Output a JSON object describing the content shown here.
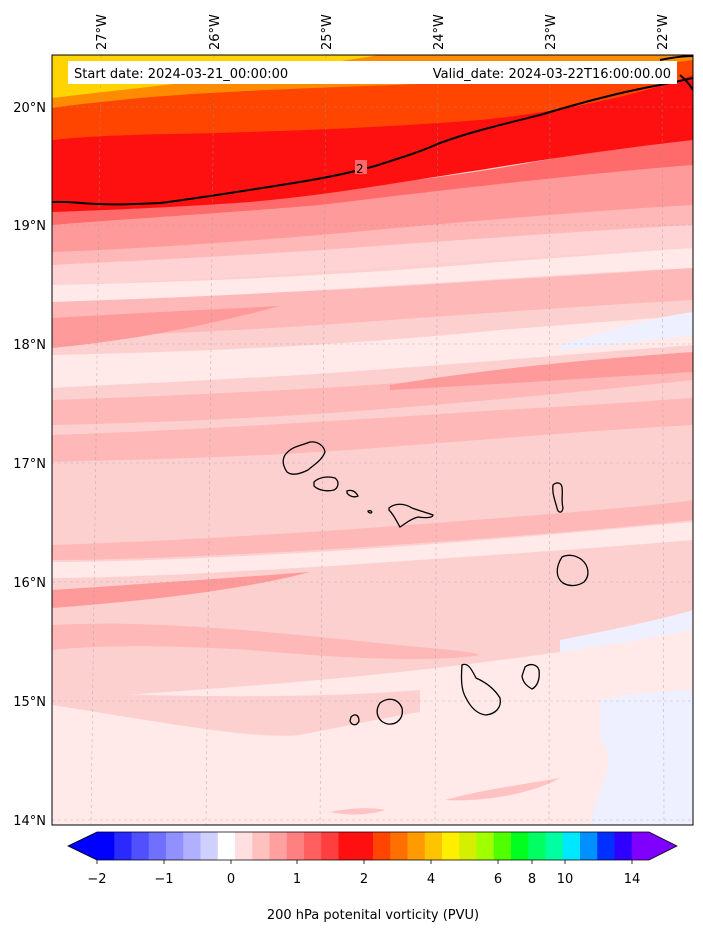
{
  "map": {
    "start_label": "Start date: 2024-03-21_00:00:00",
    "valid_label": "Valid_date: 2024-03-22T16:00:00.00",
    "contour_label": "2",
    "longitude_labels": [
      "27°W",
      "26°W",
      "25°W",
      "24°W",
      "23°W",
      "22°W"
    ],
    "latitude_labels": [
      "20°N",
      "19°N",
      "18°N",
      "17°N",
      "16°N",
      "15°N",
      "14°N"
    ],
    "background_color": "#fdd0d0",
    "band_colors": {
      "yellow": "#ffd400",
      "orange": "#ff8c00",
      "dark_orange": "#ff4500",
      "red": "#ff1010",
      "strong_pink": "#ff6a6a",
      "mid_pink": "#ff9a9a",
      "light_pink": "#ffb8b8",
      "pale_pink": "#ffd3d3",
      "near_white": "#ffe9e9",
      "pale_blue": "#eef0ff"
    }
  },
  "colorbar": {
    "title": "200 hPa potenital vorticity (PVU)",
    "tick_labels": [
      "−2",
      "−1",
      "0",
      "1",
      "2",
      "4",
      "6",
      "8",
      "10",
      "14"
    ],
    "colors": [
      "#0000ff",
      "#2a2aff",
      "#5050ff",
      "#7070ff",
      "#9090ff",
      "#b0b0ff",
      "#d0d0ff",
      "#ffffff",
      "#ffe0e0",
      "#ffc0c0",
      "#ffa0a0",
      "#ff8080",
      "#ff5f5f",
      "#ff3f3f",
      "#ff0f0f",
      "#ff1010",
      "#ff4500",
      "#ff7000",
      "#ff9a00",
      "#ffc400",
      "#ffee00",
      "#d4f000",
      "#a0ff00",
      "#50ff00",
      "#00ff20",
      "#00ff60",
      "#00ffa0",
      "#00e8ff",
      "#0090ff",
      "#0030ff",
      "#3000ff",
      "#8000ff"
    ]
  }
}
